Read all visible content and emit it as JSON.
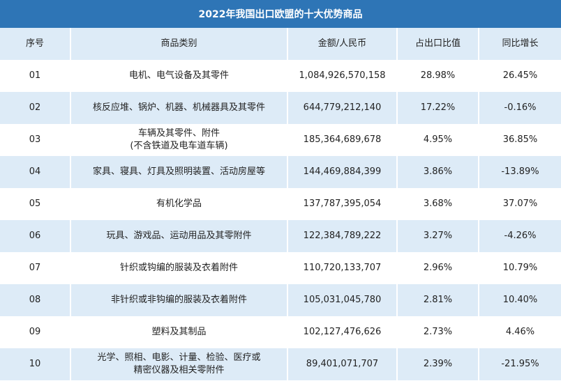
{
  "title": "2022年我国出口欧盟的十大优势商品",
  "colors": {
    "title_bg": "#2E75B6",
    "stripe_bg": "#DDEBF7"
  },
  "headers": [
    "序号",
    "商品类别",
    "金额/人民币",
    "占出口比值",
    "同比增长"
  ],
  "rows": [
    {
      "no": "01",
      "category": "电机、电气设备及其零件",
      "category2": "",
      "amount": "1,084,926,570,158",
      "share": "28.98%",
      "growth": "26.45%"
    },
    {
      "no": "02",
      "category": "核反应堆、锅炉、机器、机械器具及其零件",
      "category2": "",
      "amount": "644,779,212,140",
      "share": "17.22%",
      "growth": "-0.16%"
    },
    {
      "no": "03",
      "category": "车辆及其零件、附件",
      "category2": "(不含铁道及电车道车辆)",
      "amount": "185,364,689,678",
      "share": "4.95%",
      "growth": "36.85%"
    },
    {
      "no": "04",
      "category": "家具、寝具、灯具及照明装置、活动房屋等",
      "category2": "",
      "amount": "144,469,884,399",
      "share": "3.86%",
      "growth": "-13.89%"
    },
    {
      "no": "05",
      "category": "有机化学品",
      "category2": "",
      "amount": "137,787,395,054",
      "share": "3.68%",
      "growth": "37.07%"
    },
    {
      "no": "06",
      "category": "玩具、游戏品、运动用品及其零附件",
      "category2": "",
      "amount": "122,384,789,222",
      "share": "3.27%",
      "growth": "-4.26%"
    },
    {
      "no": "07",
      "category": "针织或钩编的服装及衣着附件",
      "category2": "",
      "amount": "110,720,133,707",
      "share": "2.96%",
      "growth": "10.79%"
    },
    {
      "no": "08",
      "category": "非针织或非钩编的服装及衣着附件",
      "category2": "",
      "amount": "105,031,045,780",
      "share": "2.81%",
      "growth": "10.40%"
    },
    {
      "no": "09",
      "category": "塑料及其制品",
      "category2": "",
      "amount": "102,127,476,626",
      "share": "2.73%",
      "growth": "4.46%"
    },
    {
      "no": "10",
      "category": "光学、照相、电影、计量、检验、医疗或",
      "category2": "精密仪器及相关零附件",
      "amount": "89,401,071,707",
      "share": "2.39%",
      "growth": "-21.95%"
    }
  ]
}
